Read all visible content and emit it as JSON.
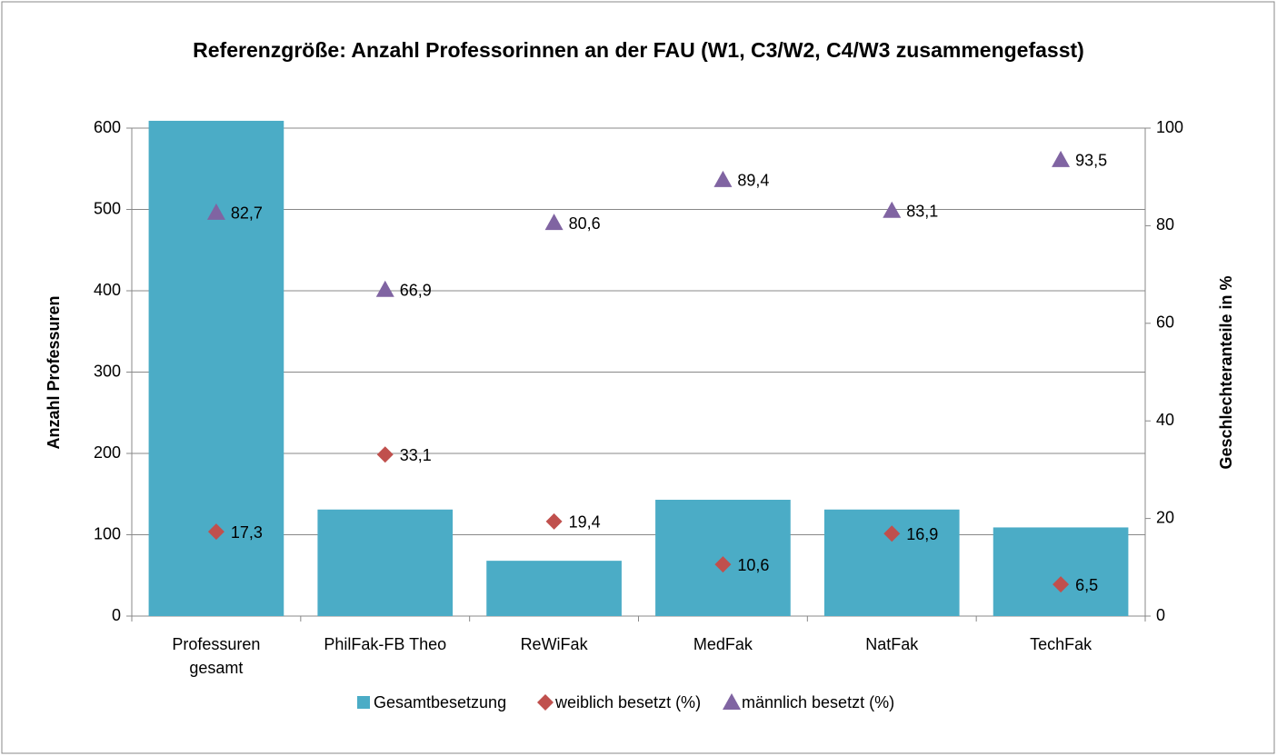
{
  "chart_data": {
    "type": "combo",
    "title": "Referenzgröße: Anzahl Professorinnen an der FAU (W1, C3/W2, C4/W3 zusammengefasst)",
    "ylabel": "Anzahl Professuren",
    "y2label": "Geschlechteranteile in %",
    "categories": [
      "Professuren gesamt",
      "PhilFak-FB Theo",
      "ReWiFak",
      "MedFak",
      "NatFak",
      "TechFak"
    ],
    "ylim": [
      0,
      600
    ],
    "yticks": [
      0,
      100,
      200,
      300,
      400,
      500,
      600
    ],
    "y2lim": [
      0,
      100
    ],
    "y2ticks": [
      0,
      20,
      40,
      60,
      80,
      100
    ],
    "grid": true,
    "legend": "bottom",
    "series": [
      {
        "name": "Gesamtbesetzung",
        "type": "bar",
        "axis": "y",
        "color": "#4bacc6",
        "values": [
          609,
          131,
          68,
          143,
          131,
          109
        ]
      },
      {
        "name": "weiblich besetzt (%)",
        "type": "scatter",
        "marker": "diamond",
        "axis": "y2",
        "color": "#c0504d",
        "values": [
          17.3,
          33.1,
          19.4,
          10.6,
          16.9,
          6.5
        ],
        "value_labels": [
          "17,3",
          "33,1",
          "19,4",
          "10,6",
          "16,9",
          "6,5"
        ]
      },
      {
        "name": "männlich besetzt (%)",
        "type": "scatter",
        "marker": "triangle",
        "axis": "y2",
        "color": "#8064a2",
        "values": [
          82.7,
          66.9,
          80.6,
          89.4,
          83.1,
          93.5
        ],
        "value_labels": [
          "82,7",
          "66,9",
          "80,6",
          "89,4",
          "83,1",
          "93,5"
        ]
      }
    ]
  }
}
